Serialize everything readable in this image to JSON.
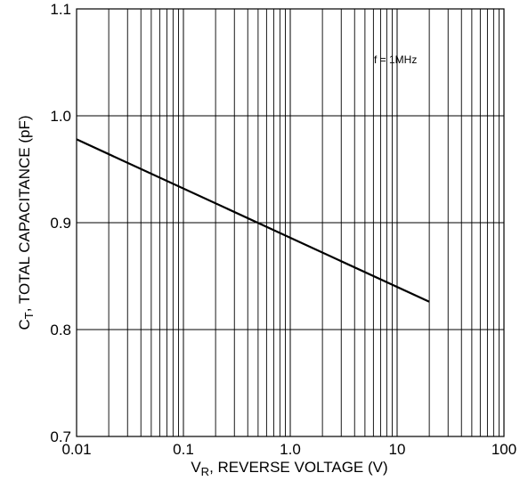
{
  "chart_data": {
    "type": "line",
    "title": "",
    "xlabel": "V",
    "xlabel_sub": "R",
    "xlabel_rest": ", REVERSE VOLTAGE (V)",
    "ylabel": "C",
    "ylabel_sub": "T",
    "ylabel_rest": ", TOTAL CAPACITANCE (pF)",
    "x_scale": "log",
    "xlim": [
      0.01,
      100
    ],
    "ylim": [
      0.7,
      1.1
    ],
    "x_ticks": [
      0.01,
      0.1,
      1,
      10,
      100
    ],
    "x_tick_labels": [
      "0.01",
      "0.1",
      "1.0",
      "10",
      "100"
    ],
    "y_ticks": [
      0.7,
      0.8,
      0.9,
      1.0,
      1.1
    ],
    "y_tick_labels": [
      "0.7",
      "0.8",
      "0.9",
      "1.0",
      "1.1"
    ],
    "grid": true,
    "legend": "none",
    "annotation": "f = 1MHz",
    "series": [
      {
        "x": [
          0.01,
          20
        ],
        "y": [
          0.978,
          0.826
        ]
      }
    ]
  }
}
